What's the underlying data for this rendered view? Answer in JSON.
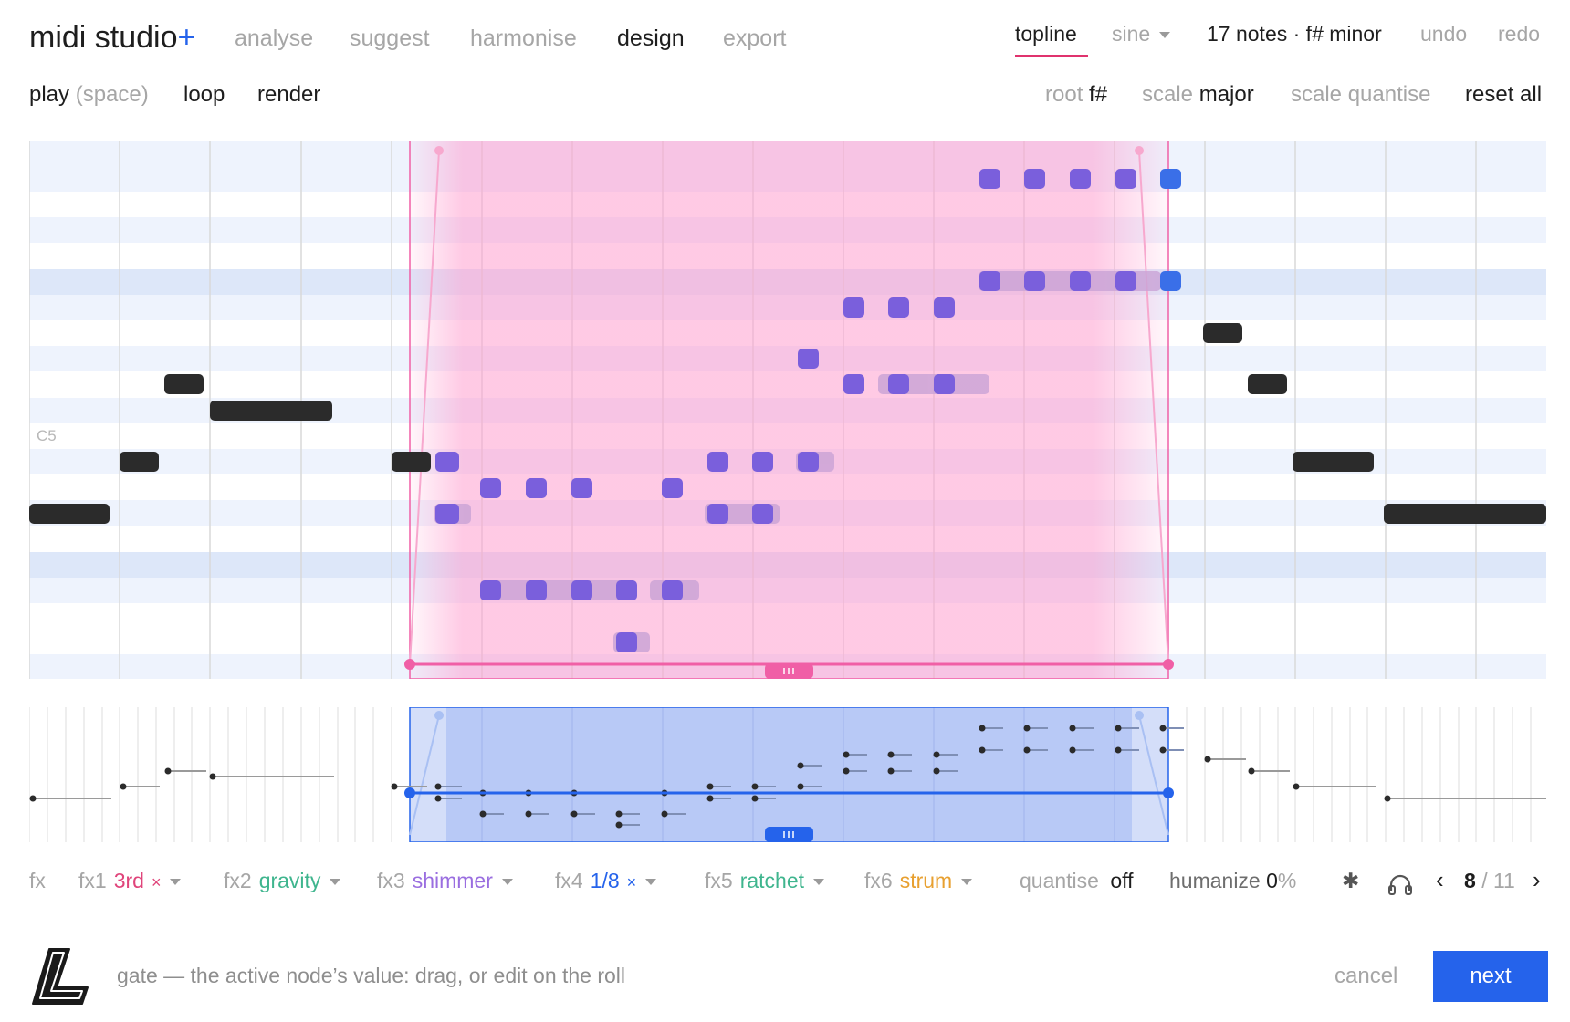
{
  "app": {
    "title": "midi studio",
    "plus": "+"
  },
  "nav": [
    "analyse",
    "suggest",
    "harmonise",
    "design",
    "export"
  ],
  "nav_active": "design",
  "top_right": {
    "tab": "topline",
    "synth": "sine",
    "summary": "17 notes · f# minor",
    "undo": "undo",
    "redo": "redo"
  },
  "transport": {
    "play": "play",
    "play_hint": "(space)",
    "loop": "loop",
    "render": "render"
  },
  "scale_bar": {
    "root_label": "root",
    "root_value": "f#",
    "scale_label": "scale",
    "scale_value": "major",
    "quantise": "scale quantise",
    "reset": "reset all"
  },
  "roll": {
    "label": "C5",
    "colors": {
      "note": "#2b2b2b",
      "edited": "#7a5fdc",
      "edited_last": "#3a6fe8",
      "selection": "#ff69b4",
      "velocity": "#2563eb"
    }
  },
  "fx": {
    "label": "fx",
    "items": [
      {
        "name": "fx1",
        "value": "3rd",
        "color": "#e0457b",
        "removable": true
      },
      {
        "name": "fx2",
        "value": "gravity",
        "color": "#3fb58e",
        "removable": false
      },
      {
        "name": "fx3",
        "value": "shimmer",
        "color": "#9a6ee0",
        "removable": false
      },
      {
        "name": "fx4",
        "value": "1/8",
        "color": "#2563eb",
        "removable": true
      },
      {
        "name": "fx5",
        "value": "ratchet",
        "color": "#3fb58e",
        "removable": false
      },
      {
        "name": "fx6",
        "value": "strum",
        "color": "#e8a030",
        "removable": false
      }
    ],
    "remove_glyph": "×",
    "quantise_label": "quantise",
    "quantise_value": "off",
    "humanize_label": "humanize",
    "humanize_value": "0",
    "humanize_unit": "%"
  },
  "pager": {
    "current": "8",
    "total": "/ 11",
    "prev": "‹",
    "next": "›"
  },
  "icons": {
    "asterisk": "✱",
    "headphones": "headphones-icon"
  },
  "footer": {
    "message": "gate — the active node’s value: drag, or edit on the roll",
    "cancel": "cancel",
    "next": "next"
  }
}
